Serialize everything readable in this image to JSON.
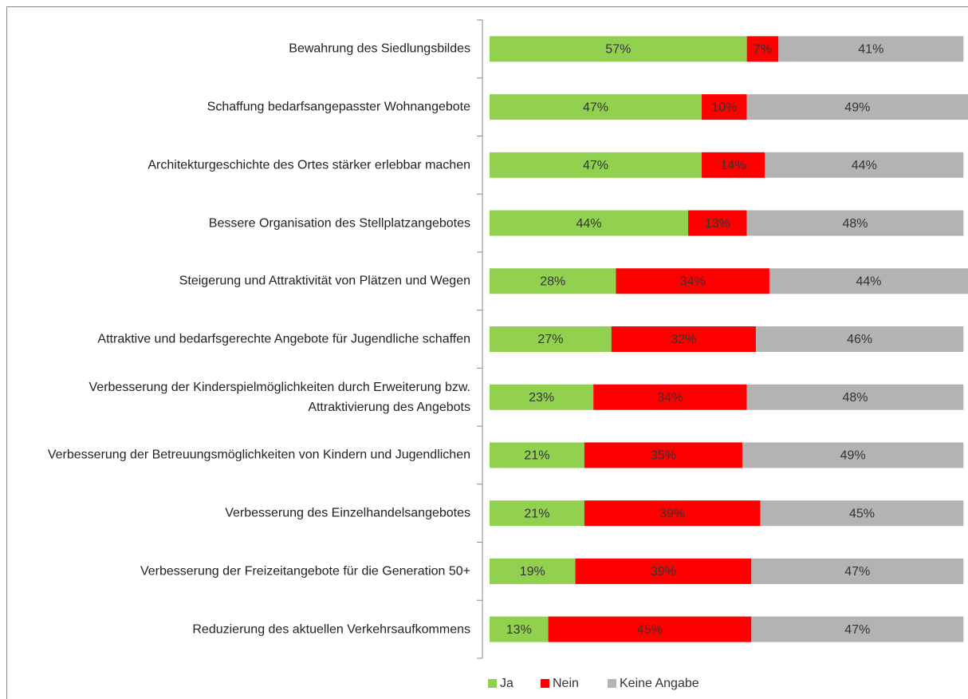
{
  "chart_data": {
    "type": "stacked_bar_horizontal",
    "categories": [
      "Bewahrung des Siedlungsbildes",
      "Schaffung bedarfsangepasster Wohnangebote",
      "Architekturgeschichte des Ortes stärker erlebbar machen",
      "Bessere Organisation des Stellplatzangebotes",
      "Steigerung und Attraktivität von Plätzen und Wegen",
      "Attraktive und bedarfsgerechte Angebote für Jugendliche schaffen",
      "Verbesserung der Kinderspielmöglichkeiten durch Erweiterung bzw. Attraktivierung des Angebots",
      "Verbesserung der Betreuungsmöglichkeiten von Kindern und Jugendlichen",
      "Verbesserung des Einzelhandelsangebotes",
      "Verbesserung der Freizeitangebote für die Generation 50+",
      "Reduzierung des aktuellen Verkehrsaufkommens"
    ],
    "series": [
      {
        "name": "Ja",
        "color": "#92d050",
        "values": [
          57,
          47,
          47,
          44,
          28,
          27,
          23,
          21,
          21,
          19,
          13
        ],
        "value_labels": [
          "57%",
          "47%",
          "47%",
          "44%",
          "28%",
          "27%",
          "23%",
          "21%",
          "21%",
          "19%",
          "13%"
        ]
      },
      {
        "name": "Nein",
        "color": "#ff0000",
        "values": [
          7,
          10,
          14,
          13,
          34,
          32,
          34,
          35,
          39,
          39,
          45
        ],
        "value_labels": [
          "7%",
          "10%",
          "14%",
          "13%",
          "34%",
          "32%",
          "34%",
          "35%",
          "39%",
          "39%",
          "45%"
        ]
      },
      {
        "name": "Keine Angabe",
        "color": "#b3b3b3",
        "values": [
          41,
          49,
          44,
          48,
          44,
          46,
          48,
          49,
          45,
          47,
          47
        ],
        "value_labels": [
          "41%",
          "49%",
          "44%",
          "48%",
          "44%",
          "46%",
          "48%",
          "49%",
          "45%",
          "47%",
          "47%"
        ]
      }
    ],
    "legend": "bottom"
  }
}
